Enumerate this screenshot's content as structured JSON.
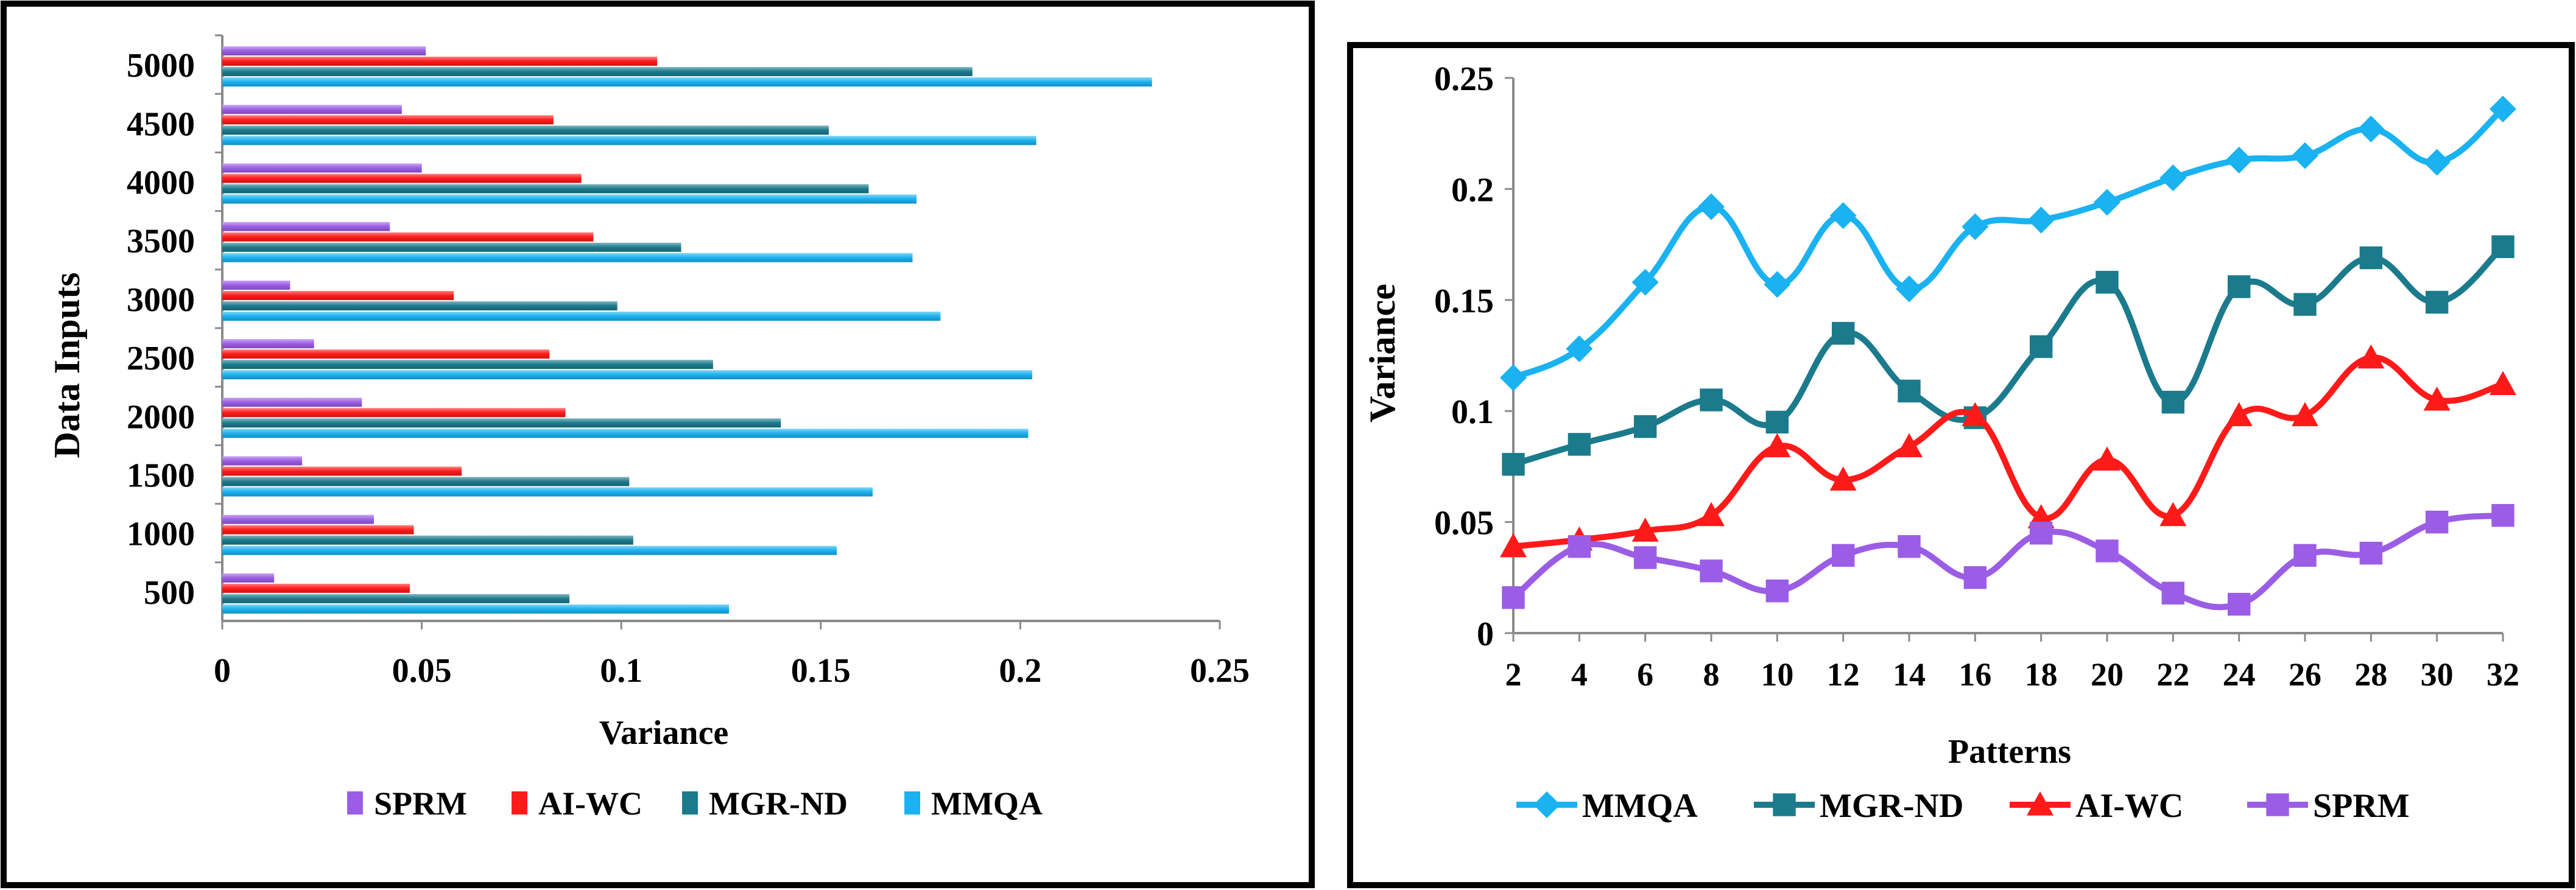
{
  "chart_data": [
    {
      "type": "bar",
      "orientation": "horizontal",
      "categories": [
        "500",
        "1000",
        "1500",
        "2000",
        "2500",
        "3000",
        "3500",
        "4000",
        "4500",
        "5000"
      ],
      "series": [
        {
          "name": "SPRM",
          "color": "#9b5de5",
          "values": [
            0.013,
            0.038,
            0.02,
            0.035,
            0.023,
            0.017,
            0.042,
            0.05,
            0.045,
            0.051
          ]
        },
        {
          "name": "AI-WC",
          "color": "#ff1a1a",
          "values": [
            0.047,
            0.048,
            0.06,
            0.086,
            0.082,
            0.058,
            0.093,
            0.09,
            0.083,
            0.109
          ]
        },
        {
          "name": "MGR-ND",
          "color": "#1b7b8c",
          "values": [
            0.087,
            0.103,
            0.102,
            0.14,
            0.123,
            0.099,
            0.115,
            0.162,
            0.152,
            0.188
          ]
        },
        {
          "name": "MMQA",
          "color": "#1ab2f0",
          "values": [
            0.127,
            0.154,
            0.163,
            0.202,
            0.203,
            0.18,
            0.173,
            0.174,
            0.204,
            0.233
          ]
        }
      ],
      "xlabel": "Variance",
      "ylabel": "Data Inputs",
      "xlim": [
        0,
        0.25
      ],
      "xticks": [
        "0",
        "0.05",
        "0.1",
        "0.15",
        "0.2",
        "0.25"
      ],
      "legend": [
        "SPRM",
        "AI-WC",
        "MGR-ND",
        "MMQA"
      ],
      "legend_position": "bottom"
    },
    {
      "type": "line",
      "x": [
        2,
        4,
        6,
        8,
        10,
        12,
        14,
        16,
        18,
        20,
        22,
        24,
        26,
        28,
        30,
        32
      ],
      "series": [
        {
          "name": "MMQA",
          "color": "#1ab2f0",
          "marker": "diamond",
          "values": [
            0.115,
            0.128,
            0.158,
            0.192,
            0.157,
            0.188,
            0.155,
            0.183,
            0.186,
            0.194,
            0.205,
            0.213,
            0.215,
            0.227,
            0.212,
            0.236
          ]
        },
        {
          "name": "MGR-ND",
          "color": "#1b7b8c",
          "marker": "square",
          "values": [
            0.076,
            0.085,
            0.093,
            0.105,
            0.095,
            0.135,
            0.109,
            0.097,
            0.129,
            0.158,
            0.104,
            0.156,
            0.148,
            0.169,
            0.149,
            0.174
          ]
        },
        {
          "name": "AI-WC",
          "color": "#ff1a1a",
          "marker": "triangle",
          "values": [
            0.039,
            0.042,
            0.046,
            0.053,
            0.084,
            0.069,
            0.084,
            0.098,
            0.052,
            0.078,
            0.053,
            0.098,
            0.098,
            0.124,
            0.105,
            0.112
          ]
        },
        {
          "name": "SPRM",
          "color": "#9b5de5",
          "marker": "square",
          "values": [
            0.016,
            0.039,
            0.034,
            0.028,
            0.019,
            0.035,
            0.039,
            0.025,
            0.045,
            0.037,
            0.018,
            0.013,
            0.035,
            0.036,
            0.05,
            0.053
          ]
        }
      ],
      "xlabel": "Patterns",
      "ylabel": "Variance",
      "ylim": [
        0,
        0.25
      ],
      "yticks": [
        "0",
        "0.05",
        "0.1",
        "0.15",
        "0.2",
        "0.25"
      ],
      "xticks": [
        "2",
        "4",
        "6",
        "8",
        "10",
        "12",
        "14",
        "16",
        "18",
        "20",
        "22",
        "24",
        "26",
        "28",
        "30",
        "32"
      ],
      "legend": [
        "MMQA",
        "MGR-ND",
        "AI-WC",
        "SPRM"
      ],
      "legend_position": "bottom"
    }
  ]
}
